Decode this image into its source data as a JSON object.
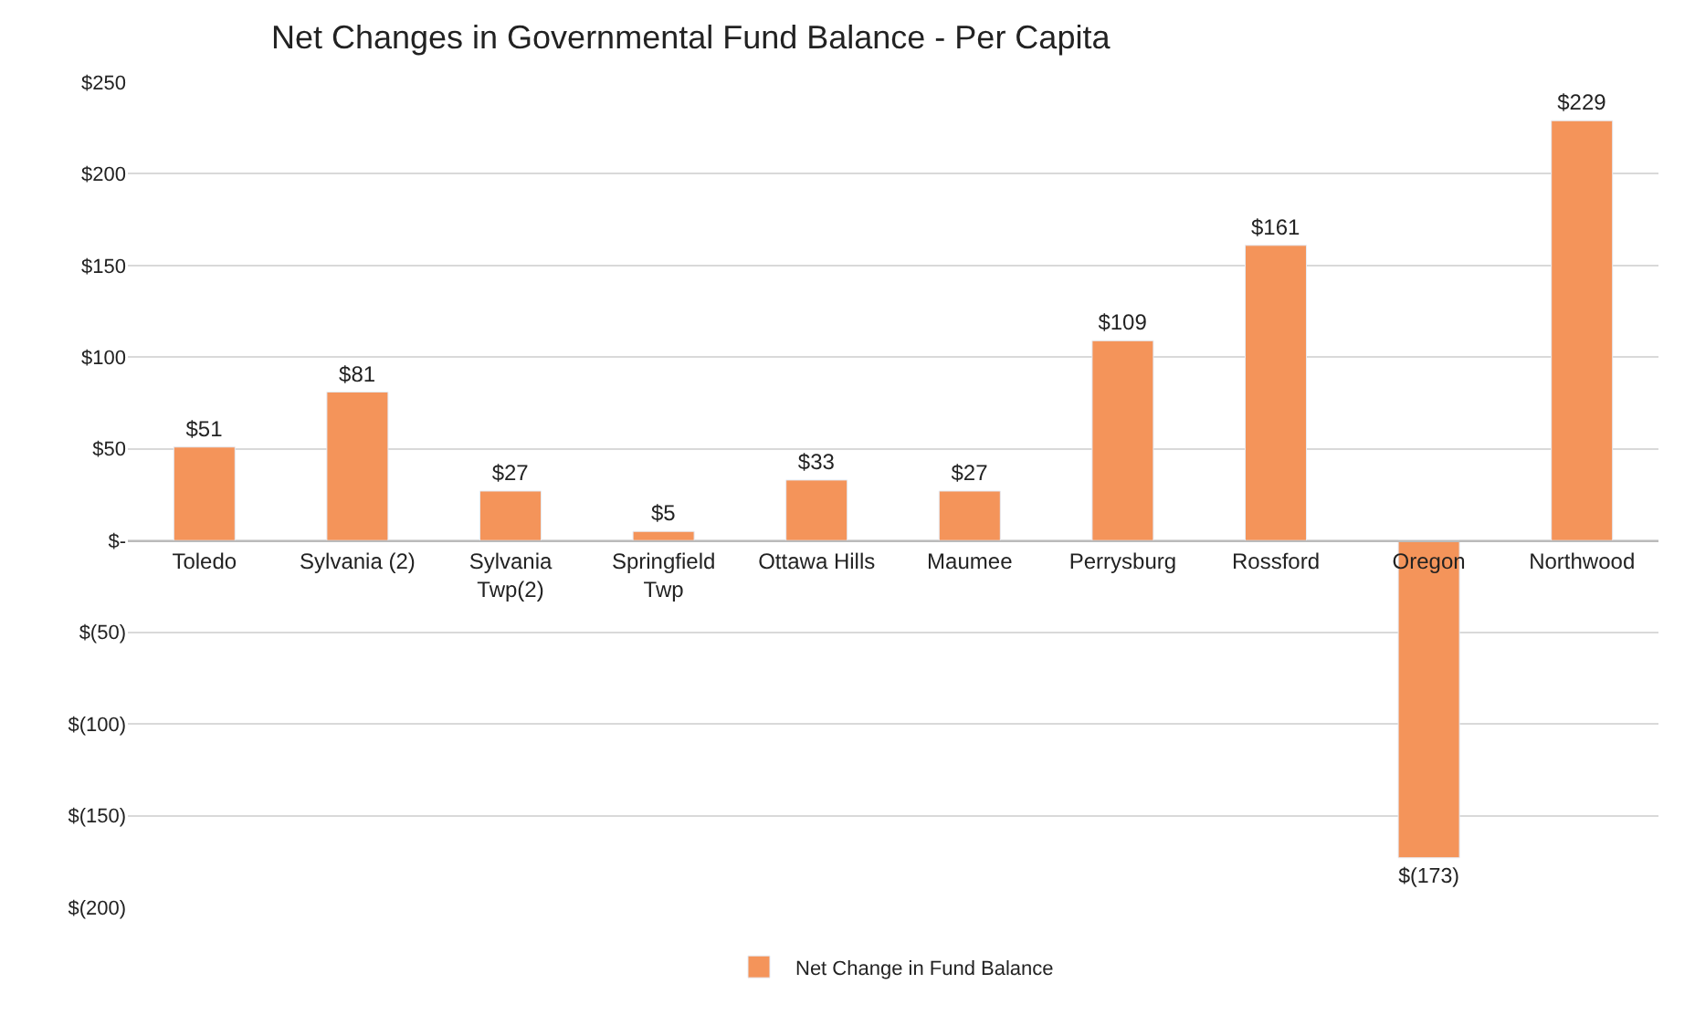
{
  "chart_data": {
    "type": "bar",
    "title": "Net Changes in Governmental Fund Balance - Per Capita",
    "categories": [
      "Toledo",
      "Sylvania (2)",
      "Sylvania Twp(2)",
      "Springfield Twp",
      "Ottawa Hills",
      "Maumee",
      "Perrysburg",
      "Rossford",
      "Oregon",
      "Northwood"
    ],
    "series": [
      {
        "name": "Net Change in Fund Balance",
        "color": "#f4945a",
        "values": [
          51,
          81,
          27,
          5,
          33,
          27,
          109,
          161,
          -173,
          229
        ],
        "value_labels": [
          "$51",
          "$81",
          "$27",
          "$5",
          "$33",
          "$27",
          "$109",
          "$161",
          "$(173)",
          "$229"
        ]
      }
    ],
    "ylim": [
      -200,
      250
    ],
    "yticks": [
      {
        "value": 250,
        "label": "$250"
      },
      {
        "value": 200,
        "label": "$200"
      },
      {
        "value": 150,
        "label": "$150"
      },
      {
        "value": 100,
        "label": "$100"
      },
      {
        "value": 50,
        "label": "$50"
      },
      {
        "value": 0,
        "label": "$-"
      },
      {
        "value": -50,
        "label": "$(50)"
      },
      {
        "value": -100,
        "label": "$(100)"
      },
      {
        "value": -150,
        "label": "$(150)"
      },
      {
        "value": -200,
        "label": "$(200)"
      }
    ],
    "grid": "y",
    "legend": "bottom"
  }
}
